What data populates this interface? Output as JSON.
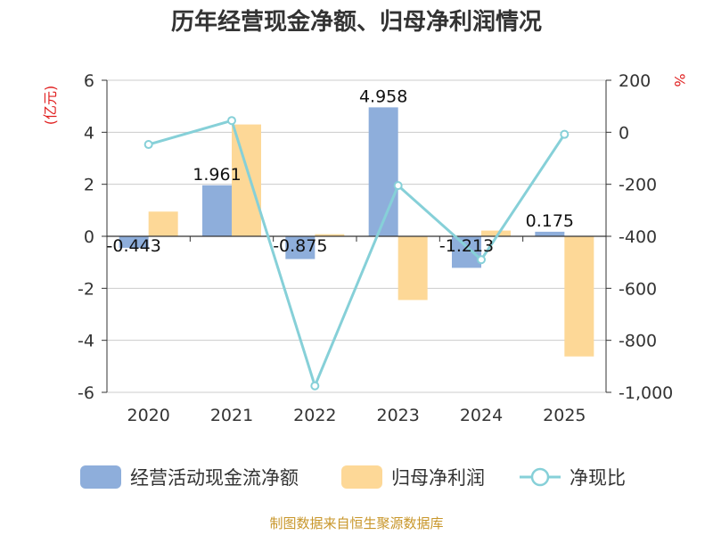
{
  "chart_data": {
    "type": "bar",
    "title": "历年经营现金净额、归母净利润情况",
    "categories": [
      "2020",
      "2021",
      "2022",
      "2023",
      "2024",
      "2025"
    ],
    "series": [
      {
        "name": "经营活动现金流净额",
        "type": "bar",
        "axis": "left",
        "color": "#8eaedb",
        "values": [
          -0.443,
          1.961,
          -0.875,
          4.958,
          -1.213,
          0.175
        ],
        "labels": [
          "-0.443",
          "1.961",
          "-0.875",
          "4.958",
          "-1.213",
          "0.175"
        ]
      },
      {
        "name": "归母净利润",
        "type": "bar",
        "axis": "left",
        "color": "#fdd897",
        "values": [
          0.95,
          4.3,
          0.08,
          -2.45,
          0.22,
          -4.62
        ]
      },
      {
        "name": "净现比",
        "type": "line",
        "axis": "right",
        "color": "#86d0d8",
        "values": [
          -47,
          45,
          -975,
          -205,
          -490,
          -8
        ]
      }
    ],
    "y_left": {
      "unit": "(亿元)",
      "min": -6,
      "max": 6,
      "ticks": [
        6,
        4,
        2,
        0,
        -2,
        -4,
        -6
      ]
    },
    "y_right": {
      "unit": "%",
      "min": -1000,
      "max": 200,
      "ticks": [
        "200",
        "0",
        "-200",
        "-400",
        "-600",
        "-800",
        "-1,000"
      ]
    },
    "grid": true,
    "legend": "bottom",
    "source": "制图数据来自恒生聚源数据库"
  }
}
